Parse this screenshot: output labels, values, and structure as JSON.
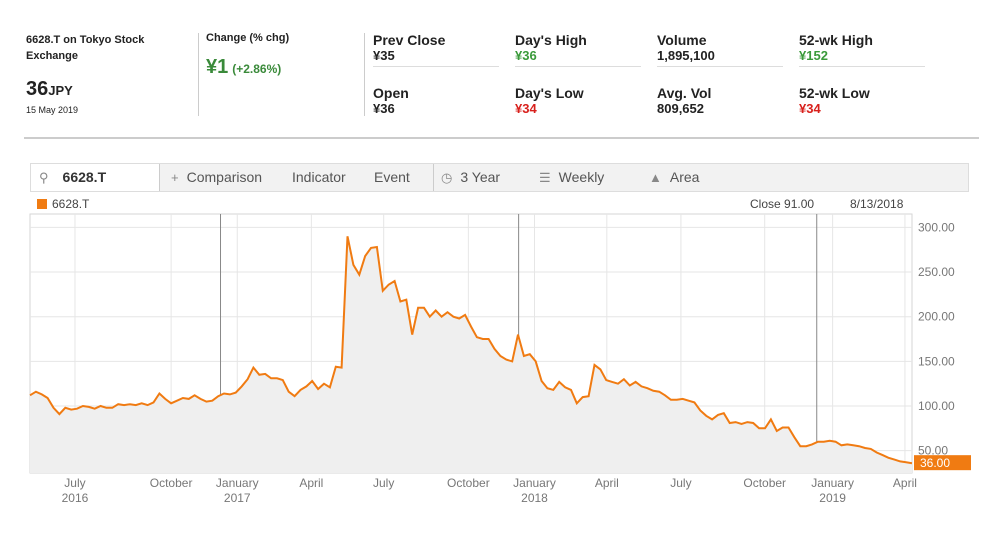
{
  "quote": {
    "name": "6628.T on Tokyo Stock Exchange",
    "price": "36",
    "currency": "JPY",
    "date": "15 May 2019",
    "change_label": "Change (% chg)",
    "change": "¥1",
    "change_pct": "(+2.86%)",
    "stats": [
      {
        "label": "Prev Close",
        "value": "¥35",
        "color": "#222222"
      },
      {
        "label": "Open",
        "value": "¥36",
        "color": "#222222"
      },
      {
        "label": "Day's High",
        "value": "¥36",
        "color": "#3a9a3a"
      },
      {
        "label": "Day's Low",
        "value": "¥34",
        "color": "#d8201c"
      },
      {
        "label": "Volume",
        "value": "1,895,100",
        "color": "#222222"
      },
      {
        "label": "Avg. Vol",
        "value": "809,652",
        "color": "#222222"
      },
      {
        "label": "52-wk High",
        "value": "¥152",
        "color": "#3a9a3a"
      },
      {
        "label": "52-wk Low",
        "value": "¥34",
        "color": "#d8201c"
      }
    ]
  },
  "toolbar": {
    "ticker": "6628.T",
    "comparison": "Comparison",
    "indicator": "Indicator",
    "event": "Event",
    "range": "3 Year",
    "interval": "Weekly",
    "chart_type": "Area"
  },
  "legend": {
    "series": "6628.T",
    "close": "Close 91.00",
    "date": "8/13/2018"
  },
  "chart_data": {
    "type": "area",
    "series_color": "#f07b12",
    "fill_color": "#efefef",
    "ylim": [
      25,
      315
    ],
    "yticks": [
      "300.00",
      "250.00",
      "200.00",
      "150.00",
      "100.00",
      "50.00"
    ],
    "ytick_values": [
      300,
      250,
      200,
      150,
      100,
      50
    ],
    "xticks": [
      {
        "label": "July",
        "sub": "2016",
        "t": 0.051
      },
      {
        "label": "October",
        "sub": "",
        "t": 0.16
      },
      {
        "label": "January",
        "sub": "2017",
        "t": 0.235
      },
      {
        "label": "April",
        "sub": "",
        "t": 0.319
      },
      {
        "label": "July",
        "sub": "",
        "t": 0.401
      },
      {
        "label": "October",
        "sub": "",
        "t": 0.497
      },
      {
        "label": "January",
        "sub": "2018",
        "t": 0.572
      },
      {
        "label": "April",
        "sub": "",
        "t": 0.654
      },
      {
        "label": "July",
        "sub": "",
        "t": 0.738
      },
      {
        "label": "October",
        "sub": "",
        "t": 0.833
      },
      {
        "label": "January",
        "sub": "2019",
        "t": 0.91
      },
      {
        "label": "April",
        "sub": "",
        "t": 0.992
      }
    ],
    "year_lines": [
      0.216,
      0.554,
      0.892
    ],
    "last_value": "36.00",
    "values": [
      112,
      116,
      113,
      109,
      98,
      91,
      98,
      96,
      97,
      100,
      99,
      97,
      100,
      98,
      98,
      102,
      101,
      102,
      101,
      103,
      101,
      104,
      114,
      108,
      103,
      106,
      109,
      108,
      112,
      108,
      105,
      106,
      111,
      114,
      113,
      115,
      122,
      130,
      143,
      135,
      136,
      131,
      131,
      129,
      116,
      111,
      118,
      122,
      128,
      119,
      125,
      121,
      144,
      143,
      290,
      258,
      247,
      268,
      277,
      278,
      229,
      236,
      240,
      217,
      219,
      180,
      210,
      210,
      200,
      207,
      200,
      205,
      200,
      198,
      202,
      189,
      177,
      175,
      175,
      164,
      156,
      152,
      150,
      180,
      156,
      158,
      150,
      128,
      120,
      118,
      127,
      121,
      118,
      103,
      110,
      111,
      146,
      141,
      129,
      127,
      125,
      130,
      123,
      127,
      122,
      120,
      117,
      116,
      112,
      107,
      107,
      108,
      106,
      104,
      95,
      89,
      85,
      90,
      92,
      81,
      82,
      80,
      82,
      81,
      75,
      75,
      85,
      72,
      76,
      76,
      65,
      55,
      55,
      57,
      60,
      60,
      61,
      60,
      56,
      57,
      56,
      55,
      53,
      52,
      48,
      45,
      42,
      40,
      38,
      37,
      36
    ]
  }
}
